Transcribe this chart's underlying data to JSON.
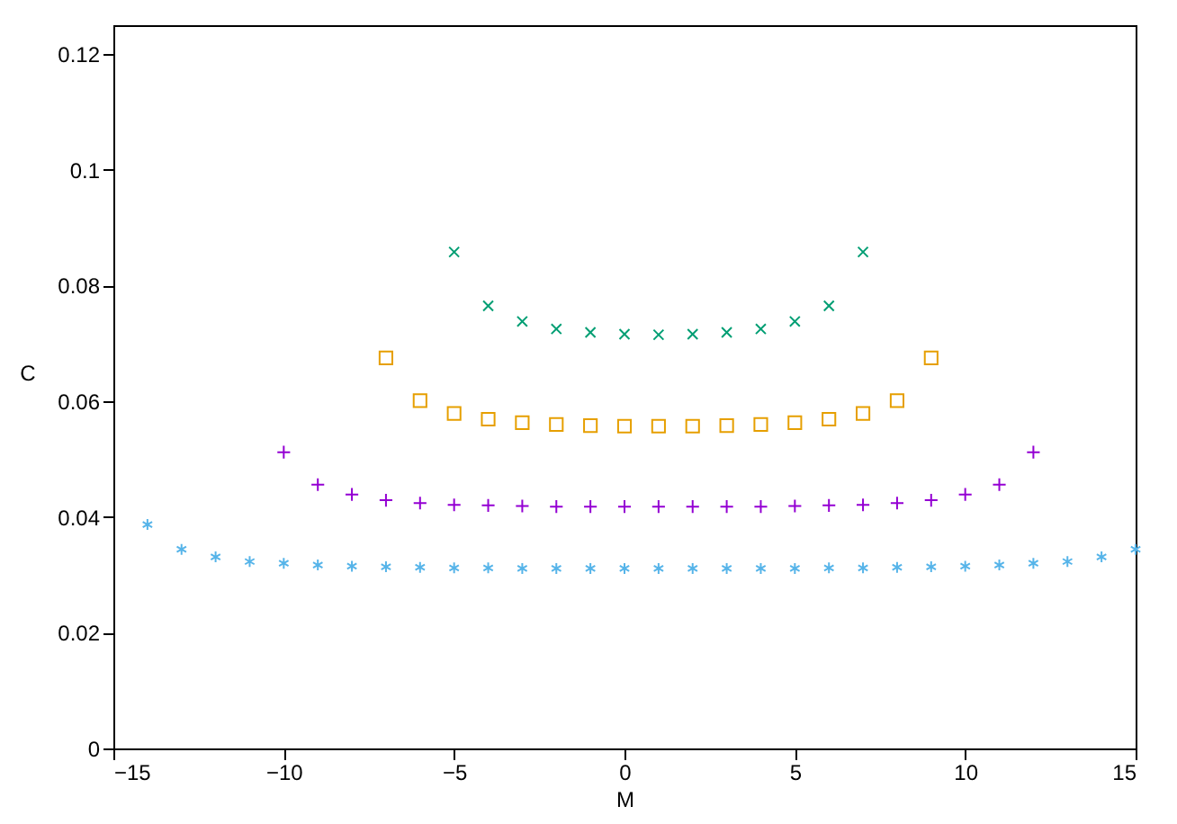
{
  "chart_data": {
    "type": "scatter",
    "xlabel": "M",
    "ylabel": "C",
    "xlim": [
      -15,
      15
    ],
    "xticks": [
      -15,
      -10,
      -5,
      0,
      5,
      10,
      15
    ],
    "ylim": [
      0,
      0.125
    ],
    "yticks": [
      0,
      0.02,
      0.04,
      0.06,
      0.08,
      0.1,
      0.12
    ],
    "grid": false,
    "series": [
      {
        "color": "#9400d3",
        "marker": "plus",
        "x": [
          -10,
          -9,
          -8,
          -7,
          -6,
          -5,
          -4,
          -3,
          -2,
          -1,
          0,
          1,
          2,
          3,
          4,
          5,
          6,
          7,
          8,
          9,
          10,
          11,
          12
        ],
        "values": [
          0.0512,
          0.0456,
          0.0439,
          0.0429,
          0.0424,
          0.0421,
          0.042,
          0.0419,
          0.0418,
          0.0418,
          0.0418,
          0.0418,
          0.0418,
          0.0418,
          0.0418,
          0.0419,
          0.042,
          0.0421,
          0.0424,
          0.0429,
          0.0439,
          0.0456,
          0.0512
        ]
      },
      {
        "color": "#009e73",
        "marker": "cross",
        "x": [
          -5,
          -4,
          -3,
          -2,
          -1,
          0,
          1,
          2,
          3,
          4,
          5,
          6,
          7
        ],
        "values": [
          0.0858,
          0.0765,
          0.0738,
          0.0725,
          0.0719,
          0.0716,
          0.0715,
          0.0716,
          0.0719,
          0.0725,
          0.0738,
          0.0765,
          0.0858
        ]
      },
      {
        "color": "#56b4e9",
        "x": [
          -14,
          -13,
          -12,
          -11,
          -10,
          -9,
          -8,
          -7,
          -6,
          -5,
          -4,
          -3,
          -2,
          -1,
          0,
          1,
          2,
          3,
          4,
          5,
          6,
          7,
          8,
          9,
          10,
          11,
          12,
          13,
          14,
          15
        ],
        "values": [
          0.0387,
          0.0344,
          0.0331,
          0.0323,
          0.032,
          0.0317,
          0.0315,
          0.0314,
          0.0313,
          0.0312,
          0.0312,
          0.0311,
          0.0311,
          0.0311,
          0.0311,
          0.0311,
          0.0311,
          0.0311,
          0.0311,
          0.0311,
          0.0312,
          0.0312,
          0.0313,
          0.0314,
          0.0315,
          0.0317,
          0.032,
          0.0323,
          0.0331,
          0.0344
        ]
      },
      {
        "color": "#e69f00",
        "marker": "square",
        "x": [
          -7,
          -6,
          -5,
          -4,
          -3,
          -2,
          -1,
          0,
          1,
          2,
          3,
          4,
          5,
          6,
          7,
          8,
          9
        ],
        "values": [
          0.0675,
          0.0601,
          0.0579,
          0.0569,
          0.0563,
          0.056,
          0.0558,
          0.0557,
          0.0557,
          0.0557,
          0.0558,
          0.056,
          0.0563,
          0.0569,
          0.0579,
          0.0601,
          0.0675
        ]
      }
    ]
  }
}
